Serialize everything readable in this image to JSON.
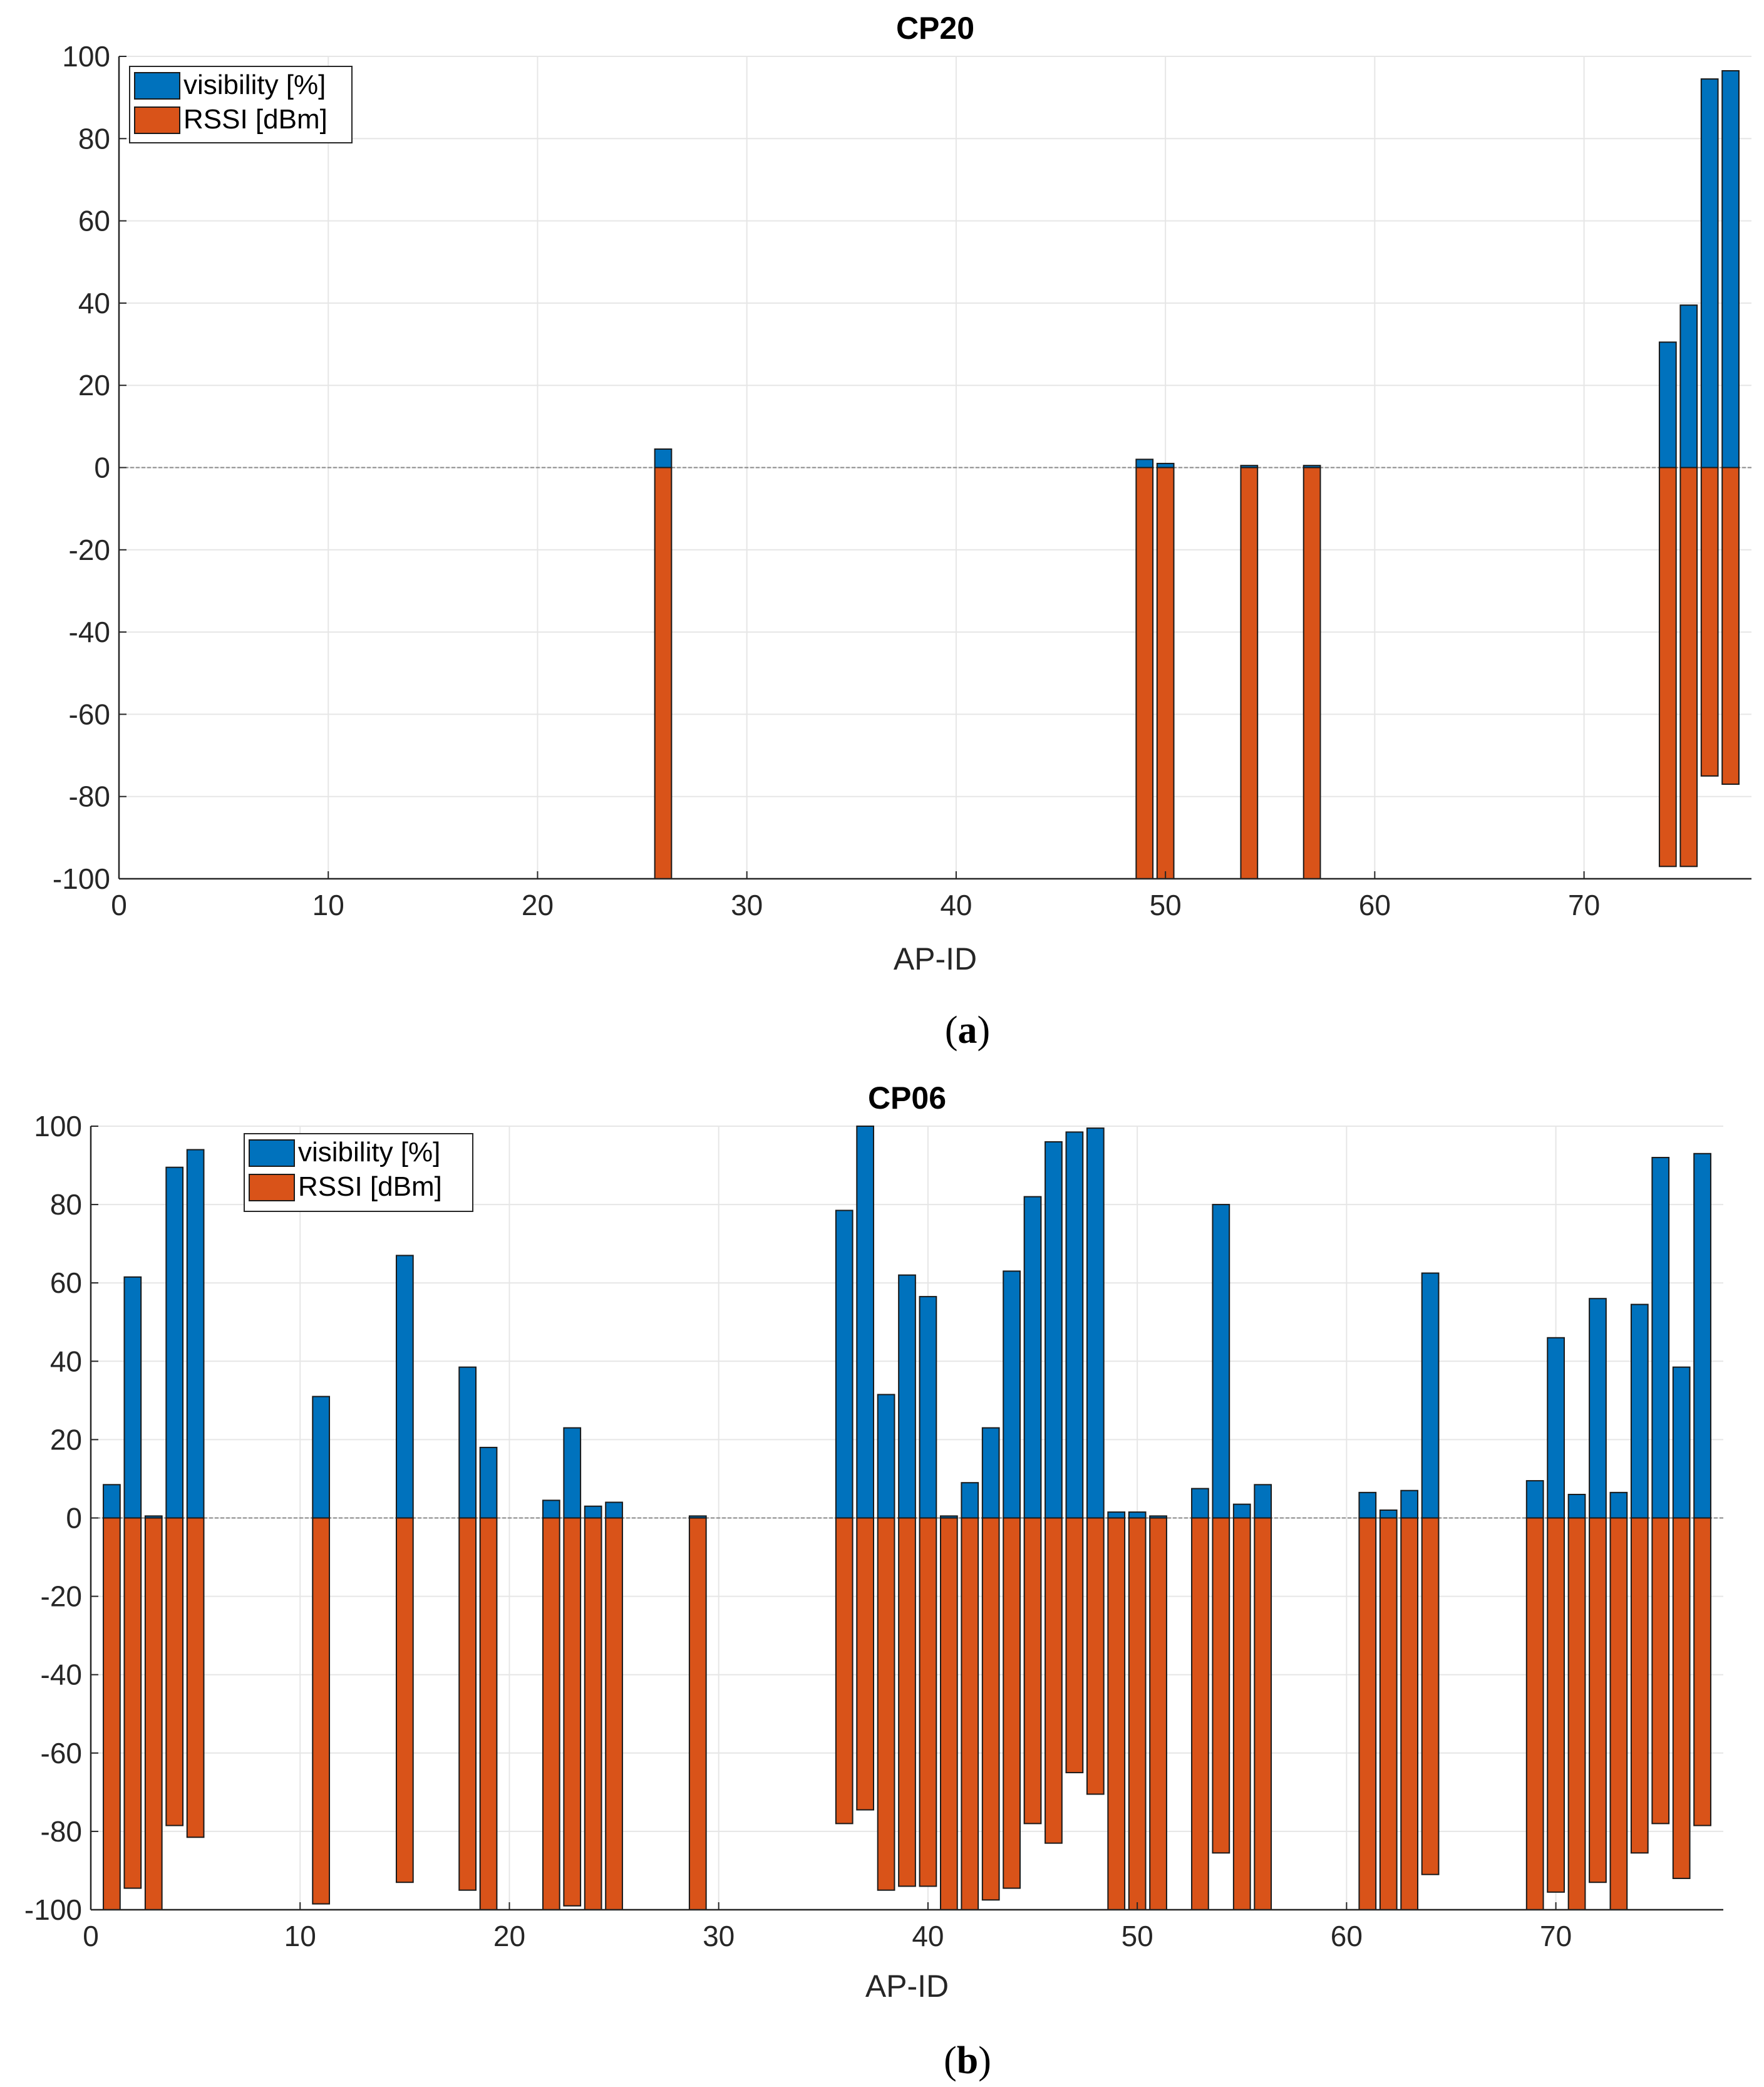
{
  "colors": {
    "visibility": "#0072BD",
    "rssi": "#D95319",
    "grid": "#e6e6e6",
    "axis": "#262626"
  },
  "chart_data": [
    {
      "type": "bar",
      "title": "CP20",
      "caption": {
        "open": "(",
        "letter": "a",
        "close": ")"
      },
      "xlabel": "AP-ID",
      "ylabel": "",
      "xlim": [
        0,
        78
      ],
      "ylim": [
        -100,
        100
      ],
      "xticks": [
        "0",
        "10",
        "20",
        "30",
        "40",
        "50",
        "60",
        "70"
      ],
      "yticks": [
        "100",
        "80",
        "60",
        "40",
        "20",
        "0",
        "-20",
        "-40",
        "-60",
        "-80",
        "-100"
      ],
      "grid": true,
      "legend_position": "top-left",
      "series": [
        {
          "name": "visibility [%]",
          "x": [
            26,
            49,
            50,
            54,
            57,
            74,
            75,
            76,
            77
          ],
          "values": [
            4.5,
            2,
            1,
            0.5,
            0.5,
            30.5,
            39.5,
            94.5,
            96.5
          ]
        },
        {
          "name": "RSSI [dBm]",
          "x": [
            26,
            49,
            50,
            54,
            57,
            74,
            75,
            76,
            77
          ],
          "values": [
            -100,
            -100,
            -100,
            -100,
            -100,
            -97,
            -97,
            -75,
            -77
          ]
        }
      ]
    },
    {
      "type": "bar",
      "title": "CP06",
      "caption": {
        "open": "(",
        "letter": "b",
        "close": ")"
      },
      "xlabel": "AP-ID",
      "ylabel": "",
      "xlim": [
        0,
        78
      ],
      "ylim": [
        -100,
        100
      ],
      "xticks": [
        "0",
        "10",
        "20",
        "30",
        "40",
        "50",
        "60",
        "70"
      ],
      "yticks": [
        "100",
        "80",
        "60",
        "40",
        "20",
        "0",
        "-20",
        "-40",
        "-60",
        "-80",
        "-100"
      ],
      "grid": true,
      "legend_position": "top-left",
      "series": [
        {
          "name": "visibility [%]",
          "x": [
            1,
            2,
            3,
            4,
            5,
            11,
            15,
            18,
            19,
            22,
            23,
            24,
            25,
            29,
            36,
            37,
            38,
            39,
            40,
            41,
            42,
            43,
            44,
            45,
            46,
            47,
            48,
            49,
            50,
            51,
            53,
            54,
            55,
            56,
            61,
            62,
            63,
            64,
            69,
            70,
            71,
            72,
            73,
            74,
            75,
            76,
            77
          ],
          "values": [
            8.5,
            61.5,
            0.5,
            89.5,
            94,
            31,
            67,
            38.5,
            18,
            4.5,
            23,
            3,
            4,
            0.5,
            78.5,
            100,
            31.5,
            62,
            56.5,
            0.5,
            9,
            23,
            63,
            82,
            96,
            98.5,
            99.5,
            1.5,
            1.5,
            0.5,
            7.5,
            80,
            3.5,
            8.5,
            6.5,
            2,
            7,
            62.5,
            9.5,
            46,
            6,
            56,
            6.5,
            54.5,
            92,
            38.5,
            93
          ]
        },
        {
          "name": "RSSI [dBm]",
          "x": [
            1,
            2,
            3,
            4,
            5,
            11,
            15,
            18,
            19,
            22,
            23,
            24,
            25,
            29,
            36,
            37,
            38,
            39,
            40,
            41,
            42,
            43,
            44,
            45,
            46,
            47,
            48,
            49,
            50,
            51,
            53,
            54,
            55,
            56,
            61,
            62,
            63,
            64,
            69,
            70,
            71,
            72,
            73,
            74,
            75,
            76,
            77
          ],
          "values": [
            -100,
            -94.5,
            -100,
            -78.5,
            -81.5,
            -98.5,
            -93,
            -95,
            -100,
            -100,
            -99,
            -100,
            -100,
            -100,
            -78,
            -74.5,
            -95,
            -94,
            -94,
            -100,
            -100,
            -97.5,
            -94.5,
            -78,
            -83,
            -65,
            -70.5,
            -100,
            -100,
            -100,
            -100,
            -85.5,
            -100,
            -100,
            -100,
            -100,
            -100,
            -91,
            -100,
            -95.5,
            -100,
            -93,
            -100,
            -85.5,
            -78,
            -92,
            -78.5
          ]
        }
      ]
    }
  ]
}
